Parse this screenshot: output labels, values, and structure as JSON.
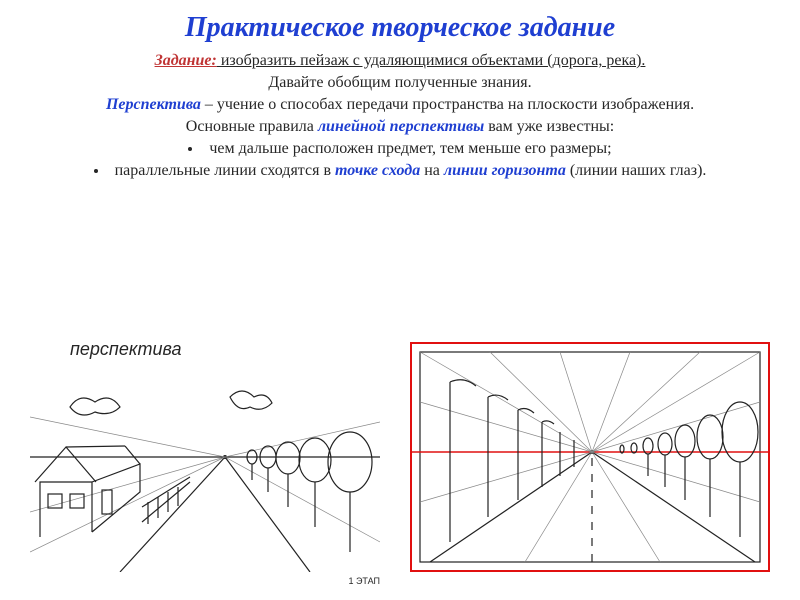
{
  "colors": {
    "title": "#1f3fd1",
    "task_label": "#c03434",
    "term": "#1f3fd1",
    "text": "#262626",
    "diagram_border": "#e11010",
    "horizon": "#e11010",
    "ink": "#222222",
    "light": "#888888"
  },
  "fontsizes": {
    "title": 28,
    "body": 16,
    "dia_label": 18,
    "stage": 9
  },
  "title": "Практическое творческое задание",
  "task": {
    "label": "Задание:",
    "text": " изобразить пейзаж с удаляющимися объектами (дорога, река)."
  },
  "summary_line": "Давайте обобщим полученные знания.",
  "defn": {
    "term": "Перспектива",
    "text": " – учение о способах передачи пространства на плоскости изображения."
  },
  "rules_intro": {
    "prefix": "Основные правила ",
    "term": "линейной перспективы",
    "suffix": " вам уже известны:"
  },
  "bullet1": "чем дальше расположен предмет, тем меньше его размеры;",
  "bullet2": {
    "p1": "параллельные линии сходятся в ",
    "t1": "точке схода",
    "p2": " на ",
    "t2": "линии горизонта",
    "p3": " (линии наших глаз)."
  },
  "dia_left": {
    "label": "перспектива",
    "stage": "1 ЭТАП"
  }
}
